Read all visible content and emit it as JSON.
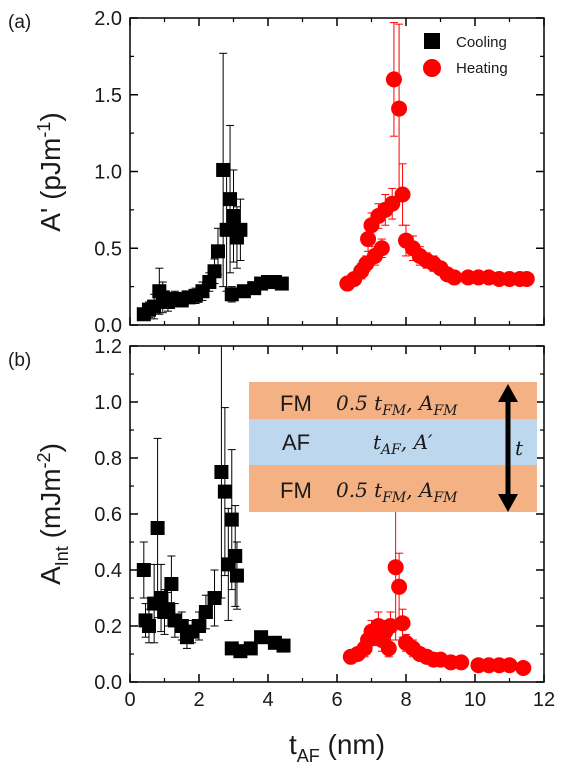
{
  "chart_data": [
    {
      "panel_label": "(a)",
      "type": "scatter",
      "ylabel": "A' (pJm",
      "ylabel_sup": "-1",
      "ylabel_tail": ")",
      "xlim": [
        0,
        12
      ],
      "ylim": [
        0,
        2.0
      ],
      "xticks": [
        0,
        2,
        4,
        6,
        8,
        10,
        12
      ],
      "yticks": [
        0.0,
        0.5,
        1.0,
        1.5,
        2.0
      ],
      "ytick_labels": [
        "0.0",
        "0.5",
        "1.0",
        "1.5",
        "2.0"
      ],
      "show_x_tick_labels": false,
      "legend": {
        "placement": "top-right",
        "entries": [
          "Cooling",
          "Heating"
        ]
      },
      "series": [
        {
          "name": "Cooling",
          "marker": "square",
          "color": "#000000",
          "points": [
            {
              "x": 0.4,
              "y": 0.07,
              "err": 0.0
            },
            {
              "x": 0.55,
              "y": 0.1,
              "err": 0.05
            },
            {
              "x": 0.7,
              "y": 0.12,
              "err": 0.08
            },
            {
              "x": 0.85,
              "y": 0.22,
              "err": 0.15
            },
            {
              "x": 0.95,
              "y": 0.18,
              "err": 0.1
            },
            {
              "x": 1.1,
              "y": 0.15,
              "err": 0.06
            },
            {
              "x": 1.3,
              "y": 0.17,
              "err": 0.05
            },
            {
              "x": 1.5,
              "y": 0.16,
              "err": 0.04
            },
            {
              "x": 1.7,
              "y": 0.18,
              "err": 0.04
            },
            {
              "x": 1.9,
              "y": 0.19,
              "err": 0.05
            },
            {
              "x": 2.1,
              "y": 0.22,
              "err": 0.06
            },
            {
              "x": 2.3,
              "y": 0.28,
              "err": 0.06
            },
            {
              "x": 2.45,
              "y": 0.35,
              "err": 0.08
            },
            {
              "x": 2.55,
              "y": 0.48,
              "err": 0.15
            },
            {
              "x": 2.7,
              "y": 1.01,
              "err": 0.76
            },
            {
              "x": 2.8,
              "y": 0.62,
              "err": 0.4
            },
            {
              "x": 2.9,
              "y": 0.82,
              "err": 0.48
            },
            {
              "x": 3.0,
              "y": 0.71,
              "err": 0.3
            },
            {
              "x": 3.1,
              "y": 0.57,
              "err": 0.2
            },
            {
              "x": 3.2,
              "y": 0.62,
              "err": 0.2
            },
            {
              "x": 2.95,
              "y": 0.2,
              "err": 0.05
            },
            {
              "x": 3.3,
              "y": 0.22,
              "err": 0.04
            },
            {
              "x": 3.6,
              "y": 0.24,
              "err": 0.03
            },
            {
              "x": 3.8,
              "y": 0.27,
              "err": 0.03
            },
            {
              "x": 4.0,
              "y": 0.28,
              "err": 0.03
            },
            {
              "x": 4.2,
              "y": 0.28,
              "err": 0.03
            },
            {
              "x": 4.4,
              "y": 0.27,
              "err": 0.03
            }
          ]
        },
        {
          "name": "Heating",
          "marker": "circle",
          "color": "#ff0000",
          "points": [
            {
              "x": 6.3,
              "y": 0.27,
              "err": 0.04
            },
            {
              "x": 6.5,
              "y": 0.3,
              "err": 0.04
            },
            {
              "x": 6.7,
              "y": 0.35,
              "err": 0.05
            },
            {
              "x": 6.85,
              "y": 0.4,
              "err": 0.05
            },
            {
              "x": 6.9,
              "y": 0.56,
              "err": 0.08
            },
            {
              "x": 7.0,
              "y": 0.65,
              "err": 0.08
            },
            {
              "x": 7.2,
              "y": 0.71,
              "err": 0.08
            },
            {
              "x": 7.1,
              "y": 0.45,
              "err": 0.06
            },
            {
              "x": 7.3,
              "y": 0.5,
              "err": 0.06
            },
            {
              "x": 7.4,
              "y": 0.75,
              "err": 0.1
            },
            {
              "x": 7.6,
              "y": 0.79,
              "err": 0.1
            },
            {
              "x": 7.65,
              "y": 1.6,
              "err": 0.37
            },
            {
              "x": 7.8,
              "y": 1.41,
              "err": 0.55
            },
            {
              "x": 7.9,
              "y": 0.85,
              "err": 0.2
            },
            {
              "x": 8.0,
              "y": 0.55,
              "err": 0.1
            },
            {
              "x": 8.2,
              "y": 0.5,
              "err": 0.08
            },
            {
              "x": 8.4,
              "y": 0.45,
              "err": 0.06
            },
            {
              "x": 8.6,
              "y": 0.42,
              "err": 0.05
            },
            {
              "x": 8.8,
              "y": 0.4,
              "err": 0.05
            },
            {
              "x": 9.0,
              "y": 0.37,
              "err": 0.04
            },
            {
              "x": 9.2,
              "y": 0.33,
              "err": 0.04
            },
            {
              "x": 9.4,
              "y": 0.31,
              "err": 0.03
            },
            {
              "x": 9.8,
              "y": 0.31,
              "err": 0.03
            },
            {
              "x": 10.1,
              "y": 0.31,
              "err": 0.03
            },
            {
              "x": 10.4,
              "y": 0.31,
              "err": 0.03
            },
            {
              "x": 10.7,
              "y": 0.3,
              "err": 0.03
            },
            {
              "x": 11.0,
              "y": 0.3,
              "err": 0.03
            },
            {
              "x": 11.3,
              "y": 0.3,
              "err": 0.03
            },
            {
              "x": 11.5,
              "y": 0.3,
              "err": 0.03
            }
          ]
        }
      ]
    },
    {
      "panel_label": "(b)",
      "type": "scatter",
      "ylabel": "A",
      "ylabel_sub": "Int",
      "ylabel_tail": " (mJm",
      "ylabel_sup": "-2",
      "ylabel_end": ")",
      "xlabel": "t",
      "xlabel_sub": "AF",
      "xlabel_tail": " (nm)",
      "xlim": [
        0,
        12
      ],
      "ylim": [
        0,
        1.2
      ],
      "xticks": [
        0,
        2,
        4,
        6,
        8,
        10,
        12
      ],
      "xtick_labels": [
        "0",
        "2",
        "4",
        "6",
        "8",
        "10",
        "12"
      ],
      "yticks": [
        0.0,
        0.2,
        0.4,
        0.6,
        0.8,
        1.0,
        1.2
      ],
      "ytick_labels": [
        "0.0",
        "0.2",
        "0.4",
        "0.6",
        "0.8",
        "1.0",
        "1.2"
      ],
      "series": [
        {
          "name": "Cooling",
          "marker": "square",
          "color": "#000000",
          "points": [
            {
              "x": 0.4,
              "y": 0.4,
              "err": 0.1
            },
            {
              "x": 0.45,
              "y": 0.22,
              "err": 0.06
            },
            {
              "x": 0.55,
              "y": 0.2,
              "err": 0.06
            },
            {
              "x": 0.7,
              "y": 0.28,
              "err": 0.14
            },
            {
              "x": 0.8,
              "y": 0.55,
              "err": 0.32
            },
            {
              "x": 0.9,
              "y": 0.3,
              "err": 0.12
            },
            {
              "x": 1.0,
              "y": 0.25,
              "err": 0.08
            },
            {
              "x": 1.1,
              "y": 0.26,
              "err": 0.06
            },
            {
              "x": 1.2,
              "y": 0.35,
              "err": 0.1
            },
            {
              "x": 1.3,
              "y": 0.22,
              "err": 0.06
            },
            {
              "x": 1.5,
              "y": 0.2,
              "err": 0.05
            },
            {
              "x": 1.65,
              "y": 0.16,
              "err": 0.04
            },
            {
              "x": 1.8,
              "y": 0.18,
              "err": 0.04
            },
            {
              "x": 2.0,
              "y": 0.2,
              "err": 0.05
            },
            {
              "x": 2.2,
              "y": 0.25,
              "err": 0.06
            },
            {
              "x": 2.45,
              "y": 0.3,
              "err": 0.1
            },
            {
              "x": 2.65,
              "y": 0.75,
              "err": 0.45
            },
            {
              "x": 2.75,
              "y": 0.68,
              "err": 0.3
            },
            {
              "x": 2.85,
              "y": 0.42,
              "err": 0.2
            },
            {
              "x": 2.95,
              "y": 0.58,
              "err": 0.25
            },
            {
              "x": 3.05,
              "y": 0.45,
              "err": 0.18
            },
            {
              "x": 3.1,
              "y": 0.38,
              "err": 0.12
            },
            {
              "x": 2.95,
              "y": 0.12,
              "err": 0.02
            },
            {
              "x": 3.2,
              "y": 0.11,
              "err": 0.02
            },
            {
              "x": 3.5,
              "y": 0.12,
              "err": 0.02
            },
            {
              "x": 3.8,
              "y": 0.16,
              "err": 0.02
            },
            {
              "x": 4.2,
              "y": 0.14,
              "err": 0.02
            },
            {
              "x": 4.45,
              "y": 0.13,
              "err": 0.02
            }
          ]
        },
        {
          "name": "Heating",
          "marker": "circle",
          "color": "#ff0000",
          "points": [
            {
              "x": 6.4,
              "y": 0.09,
              "err": 0.02
            },
            {
              "x": 6.6,
              "y": 0.1,
              "err": 0.02
            },
            {
              "x": 6.8,
              "y": 0.12,
              "err": 0.03
            },
            {
              "x": 6.9,
              "y": 0.15,
              "err": 0.04
            },
            {
              "x": 7.0,
              "y": 0.18,
              "err": 0.04
            },
            {
              "x": 7.1,
              "y": 0.17,
              "err": 0.04
            },
            {
              "x": 7.2,
              "y": 0.2,
              "err": 0.05
            },
            {
              "x": 7.3,
              "y": 0.15,
              "err": 0.04
            },
            {
              "x": 7.4,
              "y": 0.18,
              "err": 0.04
            },
            {
              "x": 7.5,
              "y": 0.12,
              "err": 0.03
            },
            {
              "x": 7.55,
              "y": 0.2,
              "err": 0.05
            },
            {
              "x": 7.7,
              "y": 0.41,
              "err": 0.26
            },
            {
              "x": 7.8,
              "y": 0.34,
              "err": 0.12
            },
            {
              "x": 7.9,
              "y": 0.21,
              "err": 0.05
            },
            {
              "x": 8.0,
              "y": 0.14,
              "err": 0.03
            },
            {
              "x": 8.2,
              "y": 0.12,
              "err": 0.03
            },
            {
              "x": 8.4,
              "y": 0.1,
              "err": 0.02
            },
            {
              "x": 8.6,
              "y": 0.09,
              "err": 0.02
            },
            {
              "x": 8.8,
              "y": 0.08,
              "err": 0.02
            },
            {
              "x": 9.0,
              "y": 0.08,
              "err": 0.02
            },
            {
              "x": 9.3,
              "y": 0.07,
              "err": 0.02
            },
            {
              "x": 9.6,
              "y": 0.07,
              "err": 0.02
            },
            {
              "x": 10.1,
              "y": 0.06,
              "err": 0.02
            },
            {
              "x": 10.4,
              "y": 0.06,
              "err": 0.02
            },
            {
              "x": 10.7,
              "y": 0.06,
              "err": 0.02
            },
            {
              "x": 11.0,
              "y": 0.06,
              "err": 0.02
            },
            {
              "x": 11.4,
              "y": 0.05,
              "err": 0.02
            }
          ]
        }
      ],
      "inset": {
        "rows": [
          {
            "layer": "FM",
            "label": "0.5 t",
            "sub": "FM",
            "sep": ", A",
            "sub2": "FM",
            "color": "#f4b183"
          },
          {
            "layer": "AF",
            "label": "t",
            "sub": "AF",
            "sep": ", A′",
            "sub2": "",
            "color": "#bdd7ee"
          },
          {
            "layer": "FM",
            "label": "0.5 t",
            "sub": "FM",
            "sep": ", A",
            "sub2": "FM",
            "color": "#f4b183"
          }
        ],
        "thickness_label": "t"
      }
    }
  ],
  "colors": {
    "cooling": "#000000",
    "heating": "#ff0000",
    "fm_layer": "#f4b183",
    "af_layer": "#bdd7ee"
  }
}
